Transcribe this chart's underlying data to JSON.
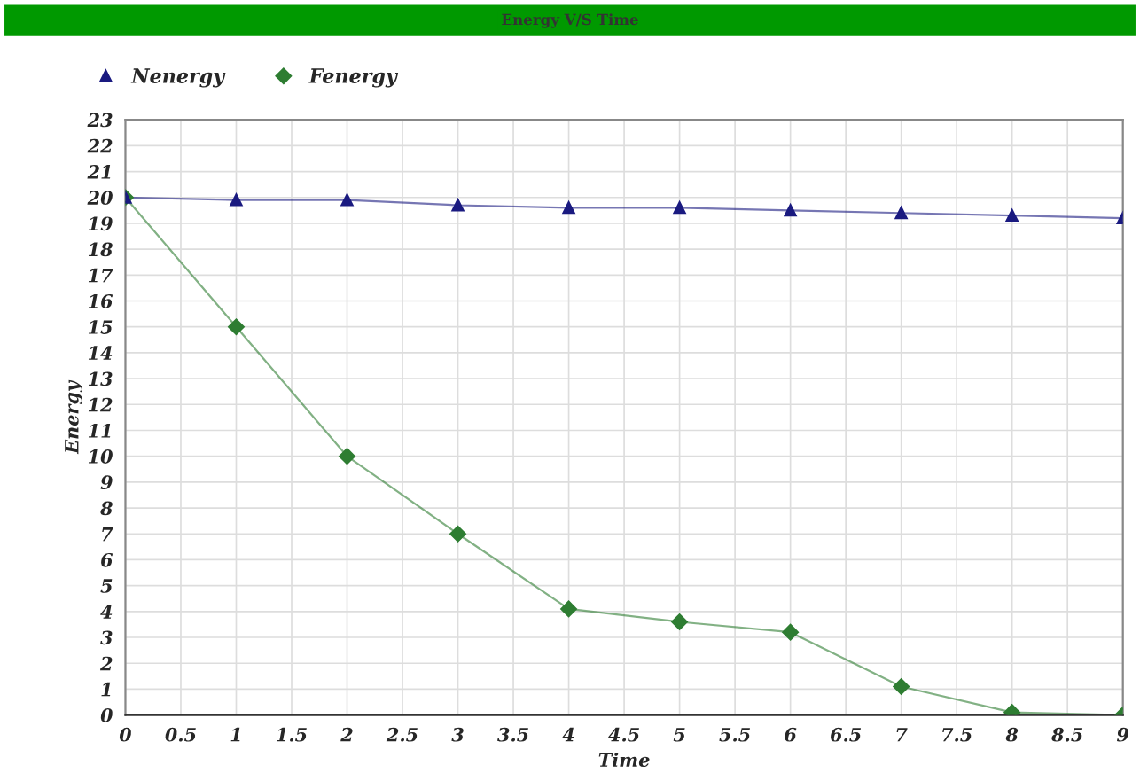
{
  "chart_data": {
    "type": "line",
    "title": "Energy V/S Time",
    "xlabel": "Time",
    "ylabel": "Energy",
    "x": [
      0,
      1,
      2,
      3,
      4,
      5,
      6,
      7,
      8,
      9
    ],
    "series": [
      {
        "name": "Nenergy",
        "color": "#1a1a80",
        "marker": "triangle",
        "values": [
          20,
          19.9,
          19.9,
          19.7,
          19.6,
          19.6,
          19.5,
          19.4,
          19.3,
          19.2
        ]
      },
      {
        "name": "Fenergy",
        "color": "#2e7d32",
        "marker": "diamond",
        "values": [
          20,
          15,
          10,
          7,
          4.1,
          3.6,
          3.2,
          1.1,
          0.1,
          0
        ]
      }
    ],
    "xlim": [
      0,
      9
    ],
    "xticks": [
      0,
      0.5,
      1,
      1.5,
      2,
      2.5,
      3,
      3.5,
      4,
      4.5,
      5,
      5.5,
      6,
      6.5,
      7,
      7.5,
      8,
      8.5,
      9
    ],
    "ylim": [
      0,
      23
    ],
    "yticks": [
      0,
      1,
      2,
      3,
      4,
      5,
      6,
      7,
      8,
      9,
      10,
      11,
      12,
      13,
      14,
      15,
      16,
      17,
      18,
      19,
      20,
      21,
      22,
      23
    ],
    "grid": true,
    "legend": "top left"
  }
}
